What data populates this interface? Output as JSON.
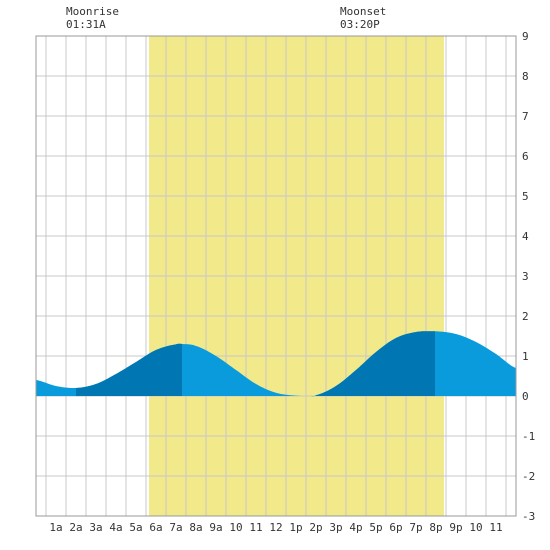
{
  "moonrise": {
    "label": "Moonrise",
    "time": "01:31A"
  },
  "moonset": {
    "label": "Moonset",
    "time": "03:20P"
  },
  "colors": {
    "daylight": "#f2e98a",
    "water_light": "#0a9bdc",
    "water_dark": "#0077b3",
    "grid": "#c8c8c8",
    "border": "#999999"
  },
  "chart_data": {
    "type": "area",
    "x_unit": "hour of day",
    "xlim": [
      0,
      24
    ],
    "ylim": [
      -3,
      9
    ],
    "grid": true,
    "y_ticks": [
      -3,
      -2,
      -1,
      0,
      1,
      2,
      3,
      4,
      5,
      6,
      7,
      8,
      9
    ],
    "x_tick_hours": [
      1,
      2,
      3,
      4,
      5,
      6,
      7,
      8,
      9,
      10,
      11,
      12,
      13,
      14,
      15,
      16,
      17,
      18,
      19,
      20,
      21,
      22,
      23
    ],
    "x_tick_labels": [
      "1a",
      "2a",
      "3a",
      "4a",
      "5a",
      "6a",
      "7a",
      "8a",
      "9a",
      "10",
      "11",
      "12",
      "1p",
      "2p",
      "3p",
      "4p",
      "5p",
      "6p",
      "7p",
      "8p",
      "9p",
      "10",
      "11"
    ],
    "daylight": {
      "start_hour": 5.65,
      "end_hour": 20.4
    },
    "tide_x": [
      0,
      1,
      2,
      3,
      4,
      5,
      6,
      7,
      7.3,
      8,
      9,
      10,
      11,
      12,
      13,
      13.75,
      14,
      15,
      16,
      17,
      18,
      19,
      19.95,
      20,
      21,
      22,
      23,
      24
    ],
    "tide_y": [
      0.4,
      0.25,
      0.2,
      0.3,
      0.55,
      0.85,
      1.15,
      1.29,
      1.3,
      1.25,
      1.0,
      0.65,
      0.3,
      0.08,
      0.01,
      0.0,
      0.02,
      0.25,
      0.65,
      1.1,
      1.45,
      1.6,
      1.62,
      1.62,
      1.55,
      1.35,
      1.05,
      0.7
    ],
    "highlight_ranges": [
      [
        2.0,
        7.3
      ],
      [
        13.75,
        19.95
      ]
    ]
  }
}
